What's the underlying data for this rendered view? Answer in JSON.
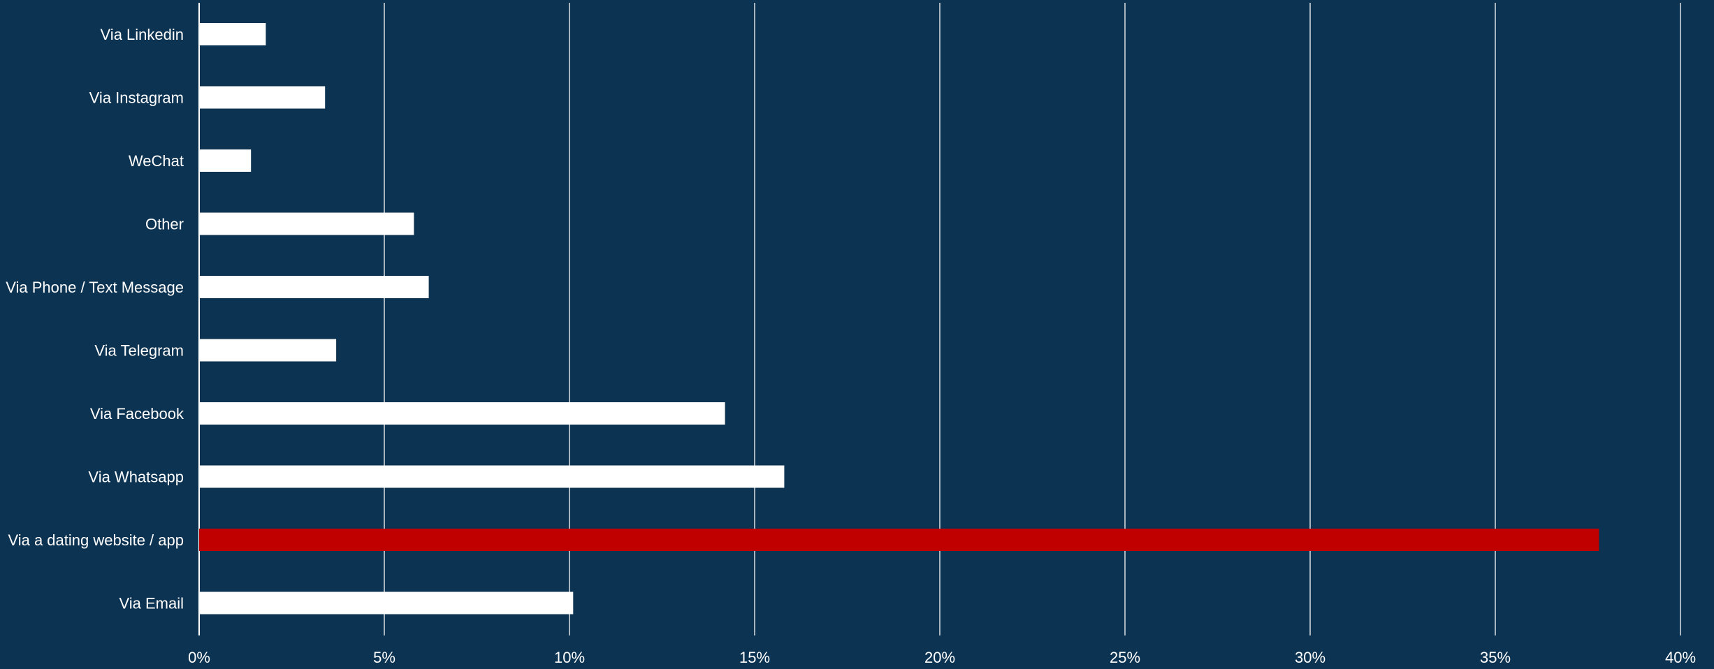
{
  "colors": {
    "background": "#0d3352",
    "bar": "#ffffff",
    "highlight_bar": "#c00000",
    "gridline": "#ffffff",
    "text": "#ffffff"
  },
  "chart_data": {
    "type": "bar",
    "orientation": "horizontal",
    "title": "",
    "xlabel": "",
    "ylabel": "",
    "categories": [
      "Via Linkedin",
      "Via Instagram",
      "WeChat",
      "Other",
      "Via Phone / Text Message",
      "Via Telegram",
      "Via Facebook",
      "Via Whatsapp",
      "Via a dating website / app",
      "Via Email"
    ],
    "values": [
      1.8,
      3.4,
      1.4,
      5.8,
      6.2,
      3.7,
      14.2,
      15.8,
      37.8,
      10.1
    ],
    "highlight_category": "Via a dating website / app",
    "xlim": [
      0,
      40
    ],
    "x_ticks": [
      0,
      5,
      10,
      15,
      20,
      25,
      30,
      35,
      40
    ],
    "x_tick_labels": [
      "0%",
      "5%",
      "10%",
      "15%",
      "20%",
      "25%",
      "30%",
      "35%",
      "40%"
    ],
    "grid": true,
    "legend": "none"
  }
}
